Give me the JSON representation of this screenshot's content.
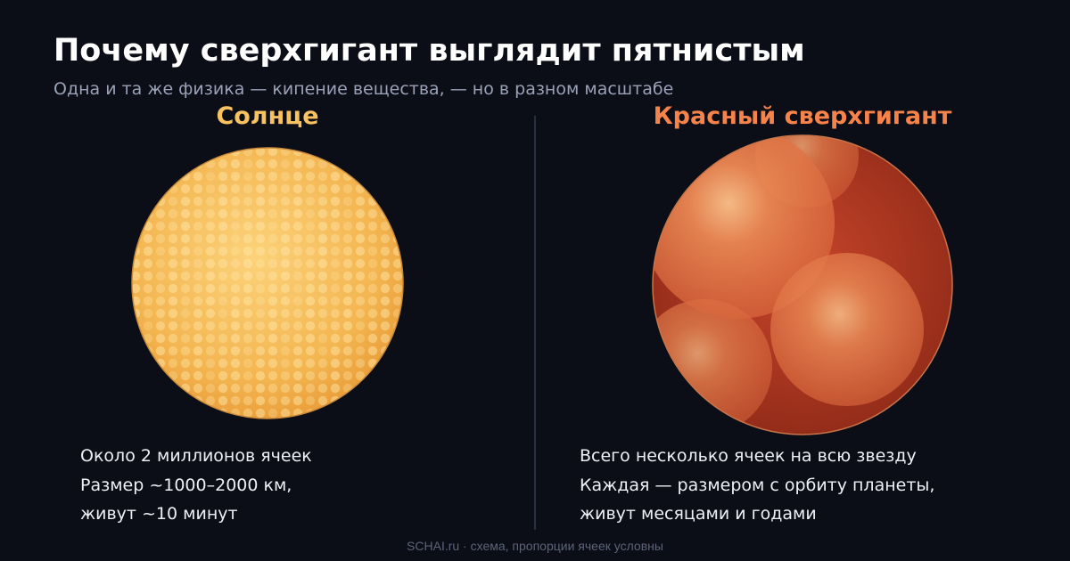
{
  "header": {
    "title": "Почему сверхгигант выглядит пятнистым",
    "subtitle": "Одна и та же физика — кипение вещества, — но в разном масштабе"
  },
  "panels": [
    {
      "heading": "Солнце",
      "lines": [
        "Около 2 миллионов ячеек",
        "Размер ~1000–2000 км,",
        "живут ~10 минут"
      ]
    },
    {
      "heading": "Красный сверхгигант",
      "lines": [
        "Всего несколько ячеек на всю звезду",
        "Каждая — размером с орбиту планеты,",
        "живут месяцами и годами"
      ]
    }
  ],
  "footer": "SCHAI.ru · схема, пропорции ячеек условны"
}
